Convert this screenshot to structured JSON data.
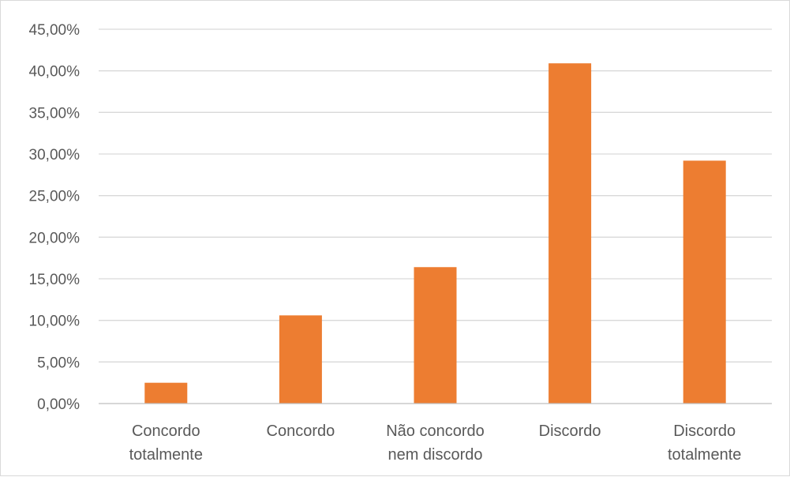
{
  "chart_data": {
    "type": "bar",
    "categories": [
      [
        "Concordo",
        "totalmente"
      ],
      [
        "Concordo"
      ],
      [
        "Não concordo",
        "nem discordo"
      ],
      [
        "Discordo"
      ],
      [
        "Discordo",
        "totalmente"
      ]
    ],
    "values": [
      2.5,
      10.6,
      16.4,
      40.9,
      29.2
    ],
    "ylim": [
      0,
      45
    ],
    "ytick_step": 5,
    "ytick_labels": [
      "0,00%",
      "5,00%",
      "10,00%",
      "15,00%",
      "20,00%",
      "25,00%",
      "30,00%",
      "35,00%",
      "40,00%",
      "45,00%"
    ],
    "grid": true,
    "bar_color": "#ED7D31",
    "grid_color": "#d9d9d9",
    "axis_color": "#bfbfbf"
  }
}
